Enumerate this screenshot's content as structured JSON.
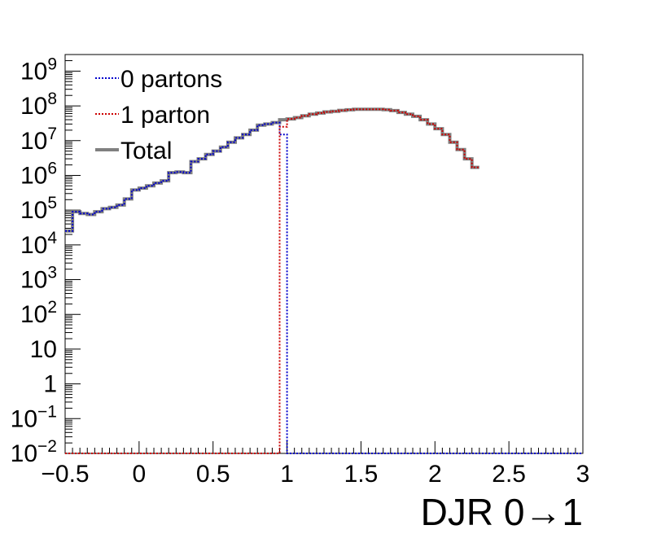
{
  "chart_data": {
    "type": "line",
    "xlabel": "DJR 0→1",
    "x_tick_labels": [
      "−0.5",
      "0",
      "0.5",
      "1",
      "1.5",
      "2",
      "2.5",
      "3"
    ],
    "x_ticks": [
      -0.5,
      0,
      0.5,
      1,
      1.5,
      2,
      2.5,
      3
    ],
    "y_tick_labels": [
      {
        "base": "10",
        "exp": "−2"
      },
      {
        "base": "10",
        "exp": "−1"
      },
      {
        "base": "1",
        "exp": ""
      },
      {
        "base": "10",
        "exp": ""
      },
      {
        "base": "10",
        "exp": "2"
      },
      {
        "base": "10",
        "exp": "3"
      },
      {
        "base": "10",
        "exp": "4"
      },
      {
        "base": "10",
        "exp": "5"
      },
      {
        "base": "10",
        "exp": "6"
      },
      {
        "base": "10",
        "exp": "7"
      },
      {
        "base": "10",
        "exp": "8"
      },
      {
        "base": "10",
        "exp": "9"
      }
    ],
    "y_ticks_log10": [
      -2,
      -1,
      0,
      1,
      2,
      3,
      4,
      5,
      6,
      7,
      8,
      9
    ],
    "xlim": [
      -0.5,
      3.0
    ],
    "ylim": [
      0.01,
      3000000000
    ],
    "y_scale": "log",
    "grid": false,
    "legend_position": "top-left",
    "bin_width": 0.05,
    "bin_edges_start": -0.5,
    "series": [
      {
        "name": "0 partons",
        "color": "#0000cc",
        "style": "dotted",
        "values": [
          25000.0,
          90000.0,
          80000.0,
          75000.0,
          90000.0,
          110000.0,
          120000.0,
          140000.0,
          210000.0,
          380000.0,
          430000.0,
          500000.0,
          600000.0,
          700000.0,
          1200000.0,
          1250000.0,
          1200000.0,
          2500000.0,
          3000000.0,
          4000000.0,
          5000000.0,
          6500000.0,
          9000000.0,
          12000000.0,
          15000000.0,
          20000000.0,
          28000000.0,
          30000000.0,
          33000000.0,
          15000000.0,
          0.01,
          0.01,
          0.01,
          0.01,
          0.01,
          0.01,
          0.01,
          0.01,
          0.01,
          0.01,
          0.01,
          0.01,
          0.01,
          0.01,
          0.01,
          0.01,
          0.01,
          0.01,
          0.01,
          0.01,
          0.01,
          0.01,
          0.01,
          0.01,
          0.01,
          0.01,
          0.01,
          0.01,
          0.01,
          0.01,
          0.01,
          0.01,
          0.01,
          0.01,
          0.01,
          0.01,
          0.01,
          0.01,
          0.01,
          0.01
        ]
      },
      {
        "name": "1 parton",
        "color": "#cc0000",
        "style": "dotted",
        "values": [
          0.01,
          0.01,
          0.01,
          0.01,
          0.01,
          0.01,
          0.01,
          0.01,
          0.01,
          0.01,
          0.01,
          0.01,
          0.01,
          0.01,
          0.01,
          0.01,
          0.01,
          0.01,
          0.01,
          0.01,
          0.01,
          0.01,
          0.01,
          0.01,
          0.01,
          0.01,
          0.01,
          0.01,
          0.01,
          25000000.0,
          42000000.0,
          46000000.0,
          52000000.0,
          58000000.0,
          62000000.0,
          67000000.0,
          70000000.0,
          74000000.0,
          77000000.0,
          80000000.0,
          80000000.0,
          80000000.0,
          80000000.0,
          78000000.0,
          73000000.0,
          65000000.0,
          58000000.0,
          50000000.0,
          40000000.0,
          30000000.0,
          22000000.0,
          15000000.0,
          9000000.0,
          5500000.0,
          3000000.0,
          1700000.0
        ]
      },
      {
        "name": "Total",
        "color": "#808080",
        "style": "solid",
        "values": [
          25000.0,
          90000.0,
          80000.0,
          75000.0,
          90000.0,
          110000.0,
          120000.0,
          140000.0,
          210000.0,
          380000.0,
          430000.0,
          500000.0,
          600000.0,
          700000.0,
          1200000.0,
          1250000.0,
          1200000.0,
          2500000.0,
          3000000.0,
          4000000.0,
          5000000.0,
          6500000.0,
          9000000.0,
          12000000.0,
          15000000.0,
          20000000.0,
          28000000.0,
          30000000.0,
          33000000.0,
          40000000.0,
          42000000.0,
          46000000.0,
          52000000.0,
          58000000.0,
          62000000.0,
          67000000.0,
          70000000.0,
          74000000.0,
          77000000.0,
          80000000.0,
          80000000.0,
          80000000.0,
          80000000.0,
          78000000.0,
          73000000.0,
          65000000.0,
          58000000.0,
          50000000.0,
          40000000.0,
          30000000.0,
          22000000.0,
          15000000.0,
          9000000.0,
          5500000.0,
          3000000.0,
          1700000.0
        ]
      }
    ]
  }
}
